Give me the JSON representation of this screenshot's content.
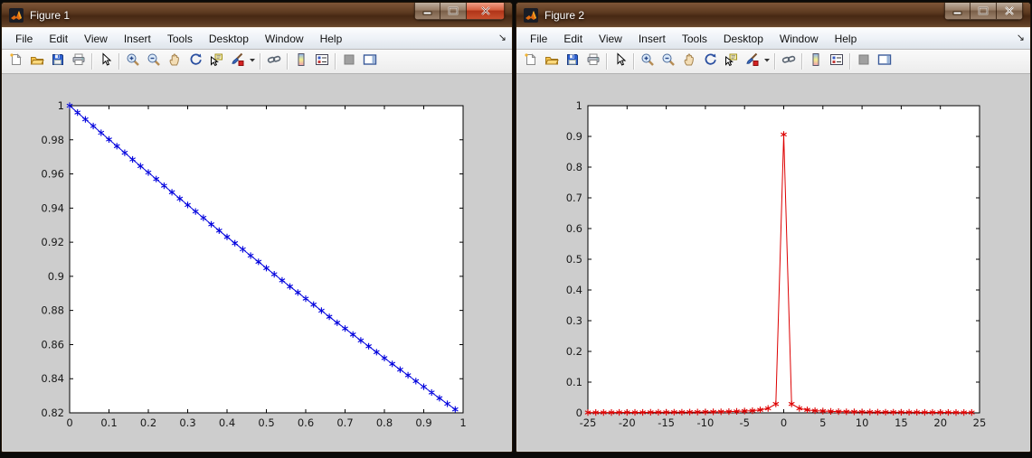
{
  "desktop": {
    "background_color": "#0b0a09",
    "wallpaper_hint_color": "#5d3a20"
  },
  "windows": [
    {
      "title": "Figure 1",
      "active": true,
      "window_buttons": [
        "minimize",
        "maximize",
        "close"
      ],
      "menu": [
        "File",
        "Edit",
        "View",
        "Insert",
        "Tools",
        "Desktop",
        "Window",
        "Help"
      ],
      "menu_overflow_glyph": "↘",
      "toolbar": [
        "new-file-icon",
        "open-folder-icon",
        "save-icon",
        "print-icon",
        "|",
        "pointer-icon",
        "|",
        "zoom-in-icon",
        "zoom-out-icon",
        "pan-icon",
        "rotate-3d-icon",
        "data-cursor-icon",
        "brush-icon",
        "dropdown-arrow-icon",
        "|",
        "link-plots-icon",
        "|",
        "colorbar-icon",
        "legend-icon",
        "|",
        "hide-plot-tools-icon",
        "show-plot-tools-icon"
      ]
    },
    {
      "title": "Figure 2",
      "active": false,
      "window_buttons": [
        "minimize",
        "maximize",
        "close"
      ],
      "menu": [
        "File",
        "Edit",
        "View",
        "Insert",
        "Tools",
        "Desktop",
        "Window",
        "Help"
      ],
      "menu_overflow_glyph": "↘",
      "toolbar": [
        "new-file-icon",
        "open-folder-icon",
        "save-icon",
        "print-icon",
        "|",
        "pointer-icon",
        "|",
        "zoom-in-icon",
        "zoom-out-icon",
        "pan-icon",
        "rotate-3d-icon",
        "data-cursor-icon",
        "brush-icon",
        "dropdown-arrow-icon",
        "|",
        "link-plots-icon",
        "|",
        "colorbar-icon",
        "legend-icon",
        "|",
        "hide-plot-tools-icon",
        "show-plot-tools-icon"
      ]
    }
  ],
  "chart_data": [
    {
      "type": "line",
      "title": "",
      "xlabel": "",
      "ylabel": "",
      "line_color": "#0000dd",
      "marker": "*",
      "plot_bg": "#ffffff",
      "figure_bg": "#cdcdcd",
      "axis_color": "#000000",
      "grid": false,
      "legend": null,
      "xlim": [
        0,
        1
      ],
      "ylim": [
        0.82,
        1.0
      ],
      "xtick_values": [
        0,
        0.1,
        0.2,
        0.3,
        0.4,
        0.5,
        0.6,
        0.7,
        0.8,
        0.9,
        1
      ],
      "xtick_labels": [
        "0",
        "0.1",
        "0.2",
        "0.3",
        "0.4",
        "0.5",
        "0.6",
        "0.7",
        "0.8",
        "0.9",
        "1"
      ],
      "ytick_values": [
        0.82,
        0.84,
        0.86,
        0.88,
        0.9,
        0.92,
        0.94,
        0.96,
        0.98,
        1
      ],
      "ytick_labels": [
        "0.82",
        "0.84",
        "0.86",
        "0.88",
        "0.9",
        "0.92",
        "0.94",
        "0.96",
        "0.98",
        "1"
      ],
      "x": [
        0,
        0.02,
        0.04,
        0.06,
        0.08,
        0.1,
        0.12,
        0.14,
        0.16,
        0.18,
        0.2,
        0.22,
        0.24,
        0.26,
        0.28,
        0.3,
        0.32,
        0.34,
        0.36,
        0.38,
        0.4,
        0.42,
        0.44,
        0.46,
        0.48,
        0.5,
        0.52,
        0.54,
        0.56,
        0.58,
        0.6,
        0.62,
        0.64,
        0.66,
        0.68,
        0.7,
        0.72,
        0.74,
        0.76,
        0.78,
        0.8,
        0.82,
        0.84,
        0.86,
        0.88,
        0.9,
        0.92,
        0.94,
        0.96,
        0.98
      ],
      "y": [
        1.0,
        0.996,
        0.992,
        0.9881,
        0.9841,
        0.9802,
        0.9763,
        0.9724,
        0.9685,
        0.9646,
        0.9608,
        0.957,
        0.9531,
        0.9493,
        0.9455,
        0.9418,
        0.938,
        0.9343,
        0.9305,
        0.9268,
        0.9231,
        0.9194,
        0.9158,
        0.9121,
        0.9085,
        0.9048,
        0.9012,
        0.8976,
        0.894,
        0.8905,
        0.8869,
        0.8834,
        0.8799,
        0.8763,
        0.8728,
        0.8694,
        0.8659,
        0.8624,
        0.859,
        0.8556,
        0.8521,
        0.8487,
        0.8453,
        0.842,
        0.8386,
        0.8353,
        0.8319,
        0.8286,
        0.8253,
        0.822
      ]
    },
    {
      "type": "line",
      "title": "",
      "xlabel": "",
      "ylabel": "",
      "line_color": "#dd0000",
      "marker": "*",
      "plot_bg": "#ffffff",
      "figure_bg": "#cdcdcd",
      "axis_color": "#000000",
      "grid": false,
      "legend": null,
      "xlim": [
        -25,
        25
      ],
      "ylim": [
        0,
        1.0
      ],
      "xtick_values": [
        -25,
        -20,
        -15,
        -10,
        -5,
        0,
        5,
        10,
        15,
        20,
        25
      ],
      "xtick_labels": [
        "-25",
        "-20",
        "-15",
        "-10",
        "-5",
        "0",
        "5",
        "10",
        "15",
        "20",
        "25"
      ],
      "ytick_values": [
        0,
        0.1,
        0.2,
        0.3,
        0.4,
        0.5,
        0.6,
        0.7,
        0.8,
        0.9,
        1
      ],
      "ytick_labels": [
        "0",
        "0.1",
        "0.2",
        "0.3",
        "0.4",
        "0.5",
        "0.6",
        "0.7",
        "0.8",
        "0.9",
        "1"
      ],
      "x": [
        -25,
        -24,
        -23,
        -22,
        -21,
        -20,
        -19,
        -18,
        -17,
        -16,
        -15,
        -14,
        -13,
        -12,
        -11,
        -10,
        -9,
        -8,
        -7,
        -6,
        -5,
        -4,
        -3,
        -2,
        -1,
        0,
        1,
        2,
        3,
        4,
        5,
        6,
        7,
        8,
        9,
        10,
        11,
        12,
        13,
        14,
        15,
        16,
        17,
        18,
        19,
        20,
        21,
        22,
        23,
        24
      ],
      "y": [
        0.0012,
        0.0012,
        0.0013,
        0.0013,
        0.0014,
        0.0014,
        0.0015,
        0.0016,
        0.0017,
        0.0018,
        0.0019,
        0.0021,
        0.0022,
        0.0024,
        0.0026,
        0.0029,
        0.0032,
        0.0036,
        0.0041,
        0.0048,
        0.0058,
        0.0072,
        0.0096,
        0.0144,
        0.0288,
        0.9063,
        0.0288,
        0.0144,
        0.0096,
        0.0072,
        0.0058,
        0.0048,
        0.0041,
        0.0036,
        0.0032,
        0.0029,
        0.0026,
        0.0024,
        0.0022,
        0.0021,
        0.0019,
        0.0018,
        0.0017,
        0.0016,
        0.0015,
        0.0014,
        0.0014,
        0.0013,
        0.0013,
        0.0012
      ]
    }
  ]
}
